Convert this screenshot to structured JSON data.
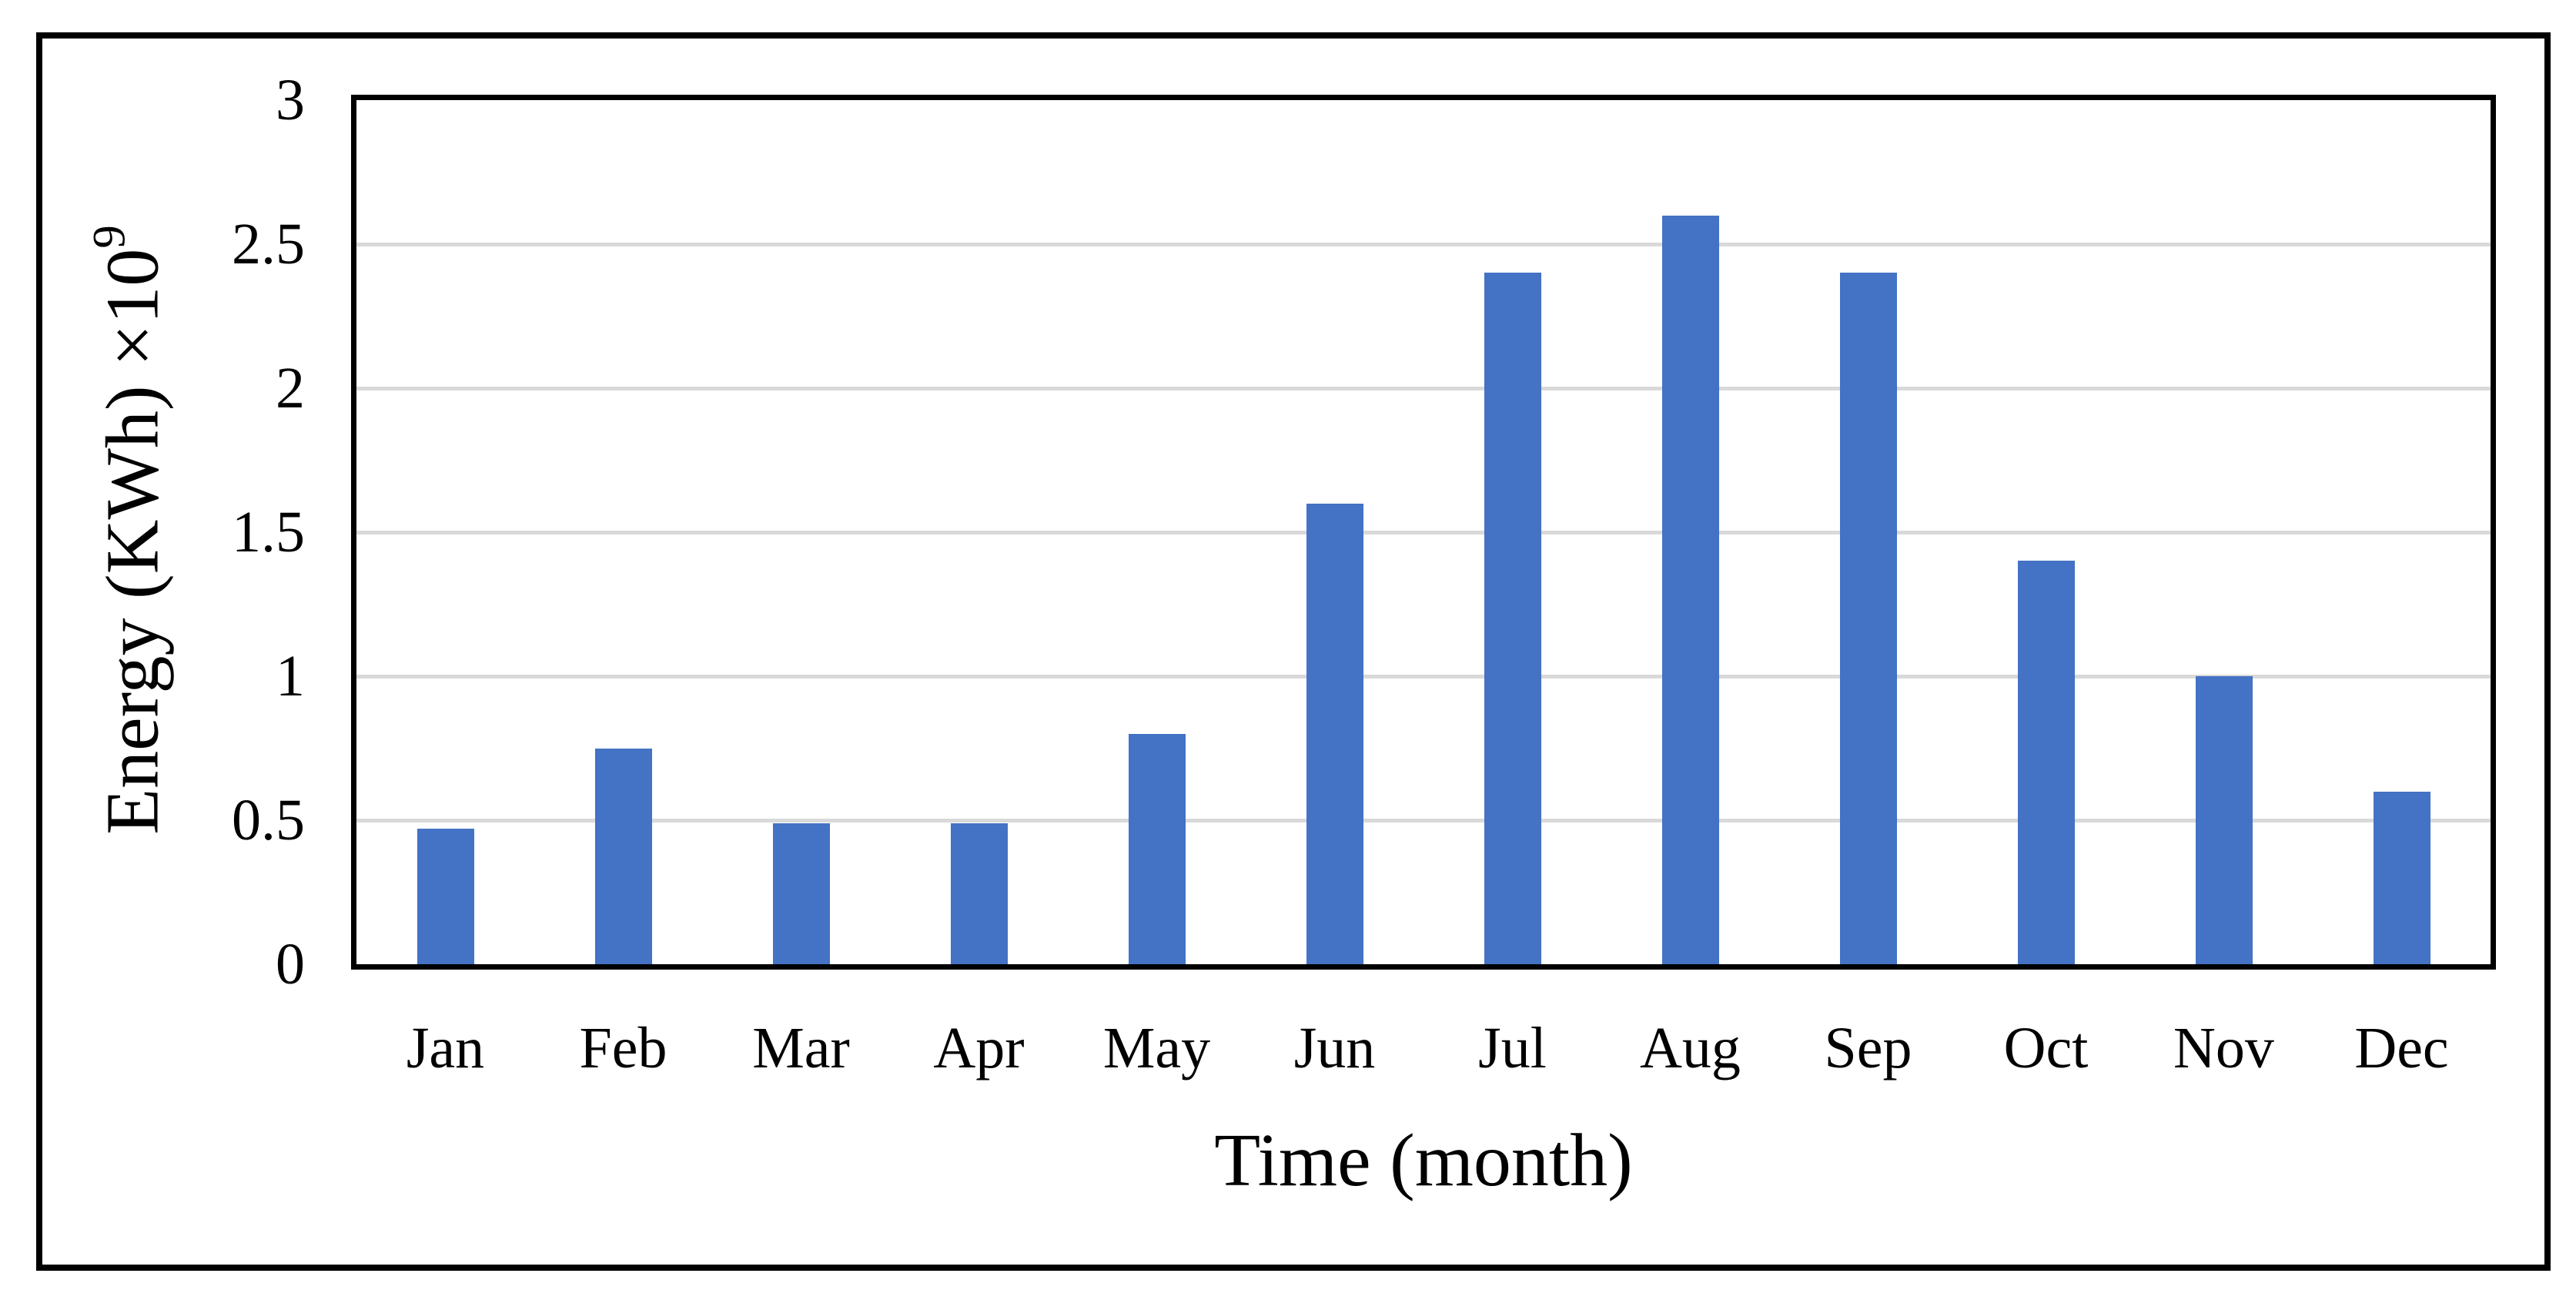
{
  "chart_data": {
    "type": "bar",
    "title": "",
    "xlabel": "Time (month)",
    "ylabel": "Energy (KWh) ×10⁹",
    "ylabel_base": "Energy (KWh) ×10",
    "ylabel_sup": "9",
    "categories": [
      "Jan",
      "Feb",
      "Mar",
      "Apr",
      "May",
      "Jun",
      "Jul",
      "Aug",
      "Sep",
      "Oct",
      "Nov",
      "Dec"
    ],
    "values": [
      0.47,
      0.75,
      0.49,
      0.49,
      0.8,
      1.6,
      2.4,
      2.6,
      2.4,
      1.4,
      1.0,
      0.6
    ],
    "ylim": [
      0,
      3
    ],
    "yticks": [
      0,
      0.5,
      1,
      1.5,
      2,
      2.5,
      3
    ],
    "grid": "horizontal",
    "legend": "none",
    "colors": {
      "bar": "#4472C4",
      "gridline": "#D9D9D9",
      "axis": "#000000",
      "background": "#FFFFFF"
    }
  }
}
